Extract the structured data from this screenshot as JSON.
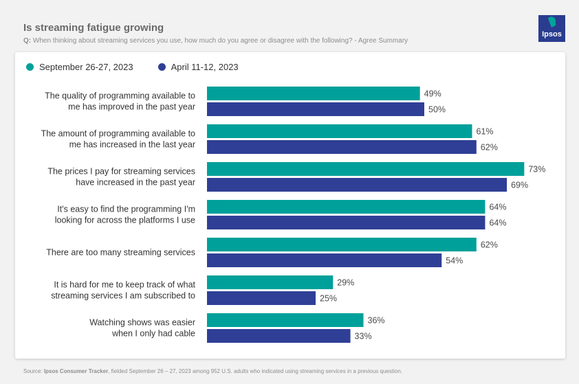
{
  "header": {
    "title": "Is streaming fatigue growing",
    "question_prefix": "Q:",
    "question": "When thinking about streaming services you use, how much do you agree or disagree with the following? - Agree Summary"
  },
  "logo": {
    "text": "Ipsos"
  },
  "colors": {
    "series1": "#00a09a",
    "series2": "#2f3f96",
    "logo_bg": "#2a3c8f",
    "logo_accent": "#00a39b"
  },
  "chart_data": {
    "type": "bar",
    "orientation": "horizontal",
    "title": "Is streaming fatigue growing",
    "categories": [
      [
        "The quality of programming available to",
        "me has improved in the past year"
      ],
      [
        "The amount of programming available to",
        "me has increased in the last year"
      ],
      [
        "The prices I pay for streaming services",
        "have increased in the past year"
      ],
      [
        "It's easy to find the programming I'm",
        "looking for across the platforms I use"
      ],
      [
        "There are too many streaming services"
      ],
      [
        "It is hard for me to keep track of what",
        "streaming services I am subscribed to"
      ],
      [
        "Watching shows was easier",
        "when I only had cable"
      ]
    ],
    "series": [
      {
        "name": "September 26-27, 2023",
        "values": [
          49,
          61,
          73,
          64,
          62,
          29,
          36
        ]
      },
      {
        "name": "April 11-12, 2023",
        "values": [
          50,
          62,
          69,
          64,
          54,
          25,
          33
        ]
      }
    ],
    "value_suffix": "%",
    "xlim": [
      0,
      100
    ],
    "legend_position": "top-left"
  },
  "footer": {
    "source_prefix": "Source:",
    "source_name": "Ipsos Consumer Tracker",
    "source_rest": ", fielded September 26 – 27, 2023 among 952 U.S. adults who indicated using streaming services in a previous question."
  }
}
